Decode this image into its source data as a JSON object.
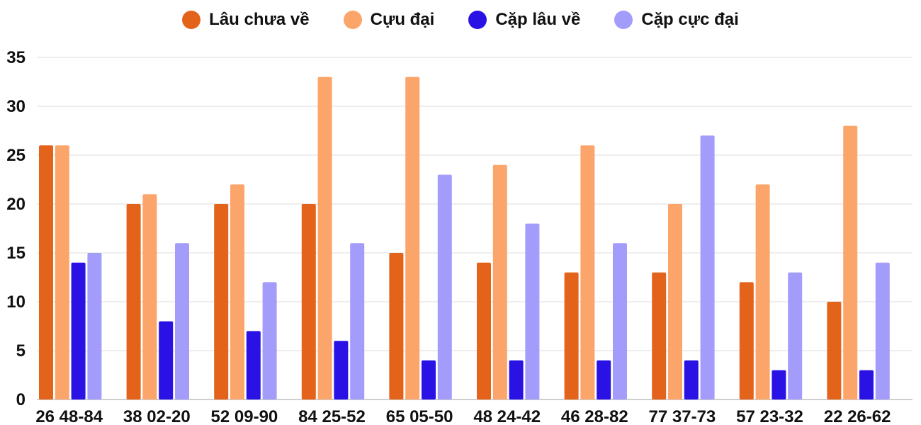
{
  "chart_data": {
    "type": "bar",
    "title": "",
    "xlabel": "",
    "ylabel": "",
    "ylim": [
      0,
      35
    ],
    "yticks": [
      0,
      5,
      10,
      15,
      20,
      25,
      30,
      35
    ],
    "grid": true,
    "legend_position": "top-center",
    "categories": [
      "26 48-84",
      "38 02-20",
      "52 09-90",
      "84 25-52",
      "65 05-50",
      "48 24-42",
      "46 28-82",
      "77 37-73",
      "57 23-32",
      "22 26-62"
    ],
    "series": [
      {
        "name": "Lâu chưa về",
        "color": "#e4631b",
        "values": [
          26,
          20,
          20,
          20,
          15,
          14,
          13,
          13,
          12,
          10
        ]
      },
      {
        "name": "Cựu đại",
        "color": "#fca56b",
        "values": [
          26,
          21,
          22,
          33,
          33,
          24,
          26,
          20,
          22,
          28
        ]
      },
      {
        "name": "Cặp lâu về",
        "color": "#2a12e5",
        "values": [
          14,
          8,
          7,
          6,
          4,
          4,
          4,
          4,
          3,
          3
        ]
      },
      {
        "name": "Cặp cực đại",
        "color": "#a39cfb",
        "values": [
          15,
          16,
          12,
          16,
          23,
          18,
          16,
          27,
          13,
          14
        ]
      }
    ]
  }
}
